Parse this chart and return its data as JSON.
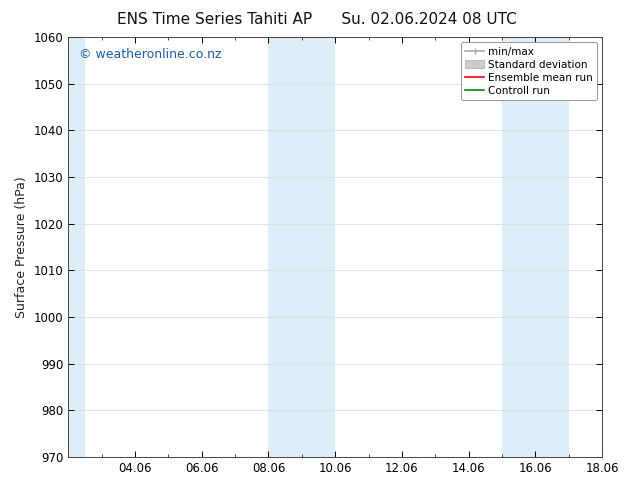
{
  "title_left": "ENS Time Series Tahiti AP",
  "title_right": "Su. 02.06.2024 08 UTC",
  "ylabel": "Surface Pressure (hPa)",
  "ylim": [
    970,
    1060
  ],
  "yticks": [
    970,
    980,
    990,
    1000,
    1010,
    1020,
    1030,
    1040,
    1050,
    1060
  ],
  "xlim": [
    0,
    16
  ],
  "xtick_labels": [
    "04.06",
    "06.06",
    "08.06",
    "10.06",
    "12.06",
    "14.06",
    "16.06",
    "18.06"
  ],
  "xtick_positions": [
    2,
    4,
    6,
    8,
    10,
    12,
    14,
    16
  ],
  "shaded_bands": [
    {
      "x_start": 0.0,
      "x_end": 0.5,
      "color": "#ddeef8"
    },
    {
      "x_start": 6.0,
      "x_end": 8.0,
      "color": "#ddeef8"
    },
    {
      "x_start": 13.0,
      "x_end": 15.0,
      "color": "#ddeef8"
    }
  ],
  "watermark_text": "© weatheronline.co.nz",
  "watermark_color": "#1a5fa8",
  "watermark_fontsize": 9,
  "background_color": "#ffffff",
  "plot_bg_color": "#ffffff",
  "grid_color": "#dddddd",
  "legend_items": [
    {
      "label": "min/max",
      "color": "#aaaaaa",
      "lw": 1.2
    },
    {
      "label": "Standard deviation",
      "color": "#cccccc",
      "lw": 6
    },
    {
      "label": "Ensemble mean run",
      "color": "#ff0000",
      "lw": 1.2
    },
    {
      "label": "Controll run",
      "color": "#008800",
      "lw": 1.2
    }
  ],
  "title_fontsize": 11,
  "tick_fontsize": 8.5,
  "ylabel_fontsize": 9,
  "legend_fontsize": 7.5
}
